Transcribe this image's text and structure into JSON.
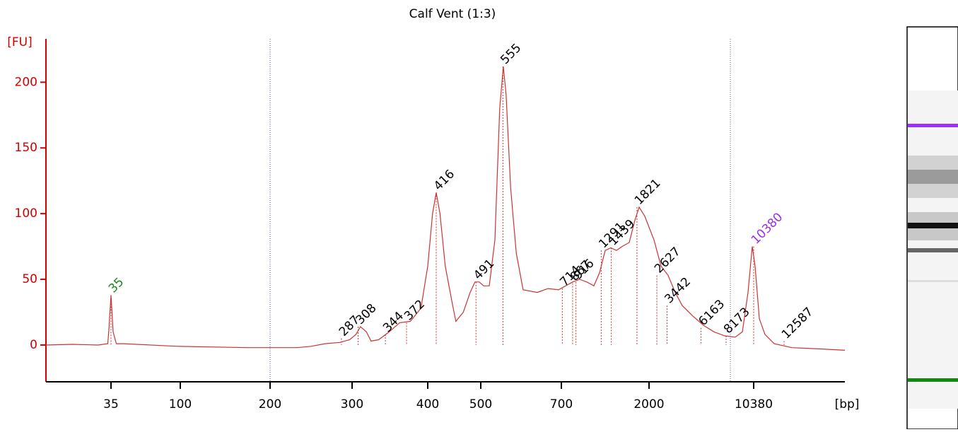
{
  "chart_data": {
    "type": "line",
    "title": "Calf Vent (1:3)",
    "y_label": "[FU]",
    "x_label": "[bp]",
    "color": "#cc3333",
    "axis_color": "#d40000",
    "ylim": [
      -28,
      233
    ],
    "yticks": [
      0,
      50,
      100,
      150,
      200
    ],
    "xlim": [
      15,
      17000
    ],
    "xticks": [
      35,
      100,
      200,
      300,
      400,
      500,
      700,
      2000,
      10380
    ],
    "x": [
      15,
      23,
      31,
      34,
      34.3,
      35,
      37,
      40,
      47,
      97,
      175,
      233,
      250,
      267,
      285,
      297,
      305,
      311,
      319,
      325,
      335,
      349,
      363,
      377,
      391,
      400,
      409,
      416,
      423,
      433,
      447,
      453,
      467,
      480,
      489,
      497,
      507,
      521,
      535,
      547,
      556,
      563,
      574,
      588,
      605,
      640,
      667,
      693,
      763,
      868,
      972,
      1077,
      1182,
      1266,
      1350,
      1434,
      1517,
      1601,
      1706,
      1790,
      1853,
      1937,
      2396,
      2962,
      3528,
      4094,
      4660,
      5509,
      6358,
      7207,
      8056,
      8908,
      9474,
      9927,
      10267,
      10483,
      10791,
      11201,
      11868,
      13151,
      15202,
      17000
    ],
    "values": [
      0,
      0.5,
      0,
      1,
      10,
      38,
      10,
      1,
      1,
      -1,
      -2,
      -2,
      -1,
      1,
      2,
      4,
      8,
      14,
      10,
      3,
      4,
      10,
      17,
      18,
      28,
      60,
      100,
      116,
      100,
      60,
      30,
      18,
      25,
      40,
      48,
      48,
      45,
      45,
      80,
      180,
      212,
      190,
      120,
      70,
      42,
      40,
      43,
      42,
      45,
      48,
      50,
      48,
      45,
      55,
      72,
      74,
      72,
      75,
      78,
      95,
      105,
      98,
      80,
      60,
      53,
      40,
      30,
      22,
      15,
      10,
      7,
      6,
      10,
      40,
      75,
      60,
      20,
      8,
      1,
      -2,
      -3,
      -4
    ],
    "peaks": {
      "x": [
        35,
        287,
        308,
        344,
        372,
        416,
        491,
        555,
        714,
        867,
        916,
        1291,
        1439,
        1821,
        2627,
        3442,
        6163,
        8173,
        10380,
        12587
      ],
      "values": [
        38,
        5,
        14,
        8,
        17,
        116,
        48,
        212,
        43,
        47,
        48,
        72,
        74,
        105,
        53,
        30,
        13,
        7,
        75,
        3
      ],
      "colors": [
        "#1a8a1a",
        "#000",
        "#000",
        "#000",
        "#000",
        "#000",
        "#000",
        "#000",
        "#000",
        "#000",
        "#000",
        "#000",
        "#000",
        "#000",
        "#000",
        "#000",
        "#000",
        "#000",
        "#9b30e0",
        "#000"
      ]
    }
  }
}
